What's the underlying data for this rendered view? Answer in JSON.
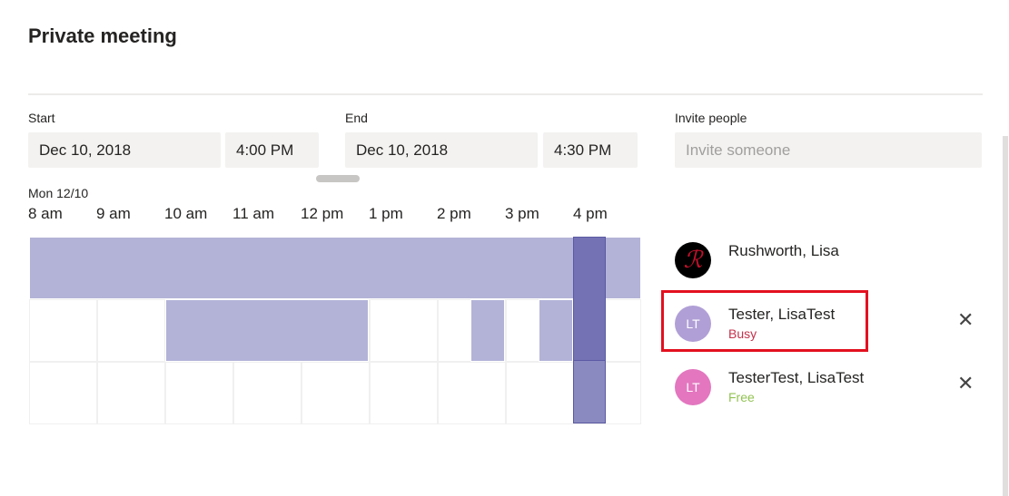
{
  "header": {
    "title": "Private meeting"
  },
  "start": {
    "label": "Start",
    "date": "Dec 10, 2018",
    "time": "4:00 PM"
  },
  "end": {
    "label": "End",
    "date": "Dec 10, 2018",
    "time": "4:30 PM"
  },
  "invite": {
    "label": "Invite people",
    "placeholder": "Invite someone"
  },
  "scheduler": {
    "day": "Mon 12/10",
    "hours": [
      "8 am",
      "9 am",
      "10 am",
      "11 am",
      "12 pm",
      "1 pm",
      "2 pm",
      "3 pm",
      "4 pm"
    ]
  },
  "people": [
    {
      "name": "Rushworth, Lisa"
    },
    {
      "name": "Tester, LisaTest",
      "initials": "LT",
      "status": "Busy"
    },
    {
      "name": "TesterTest, LisaTest",
      "initials": "LT",
      "status": "Free"
    }
  ]
}
